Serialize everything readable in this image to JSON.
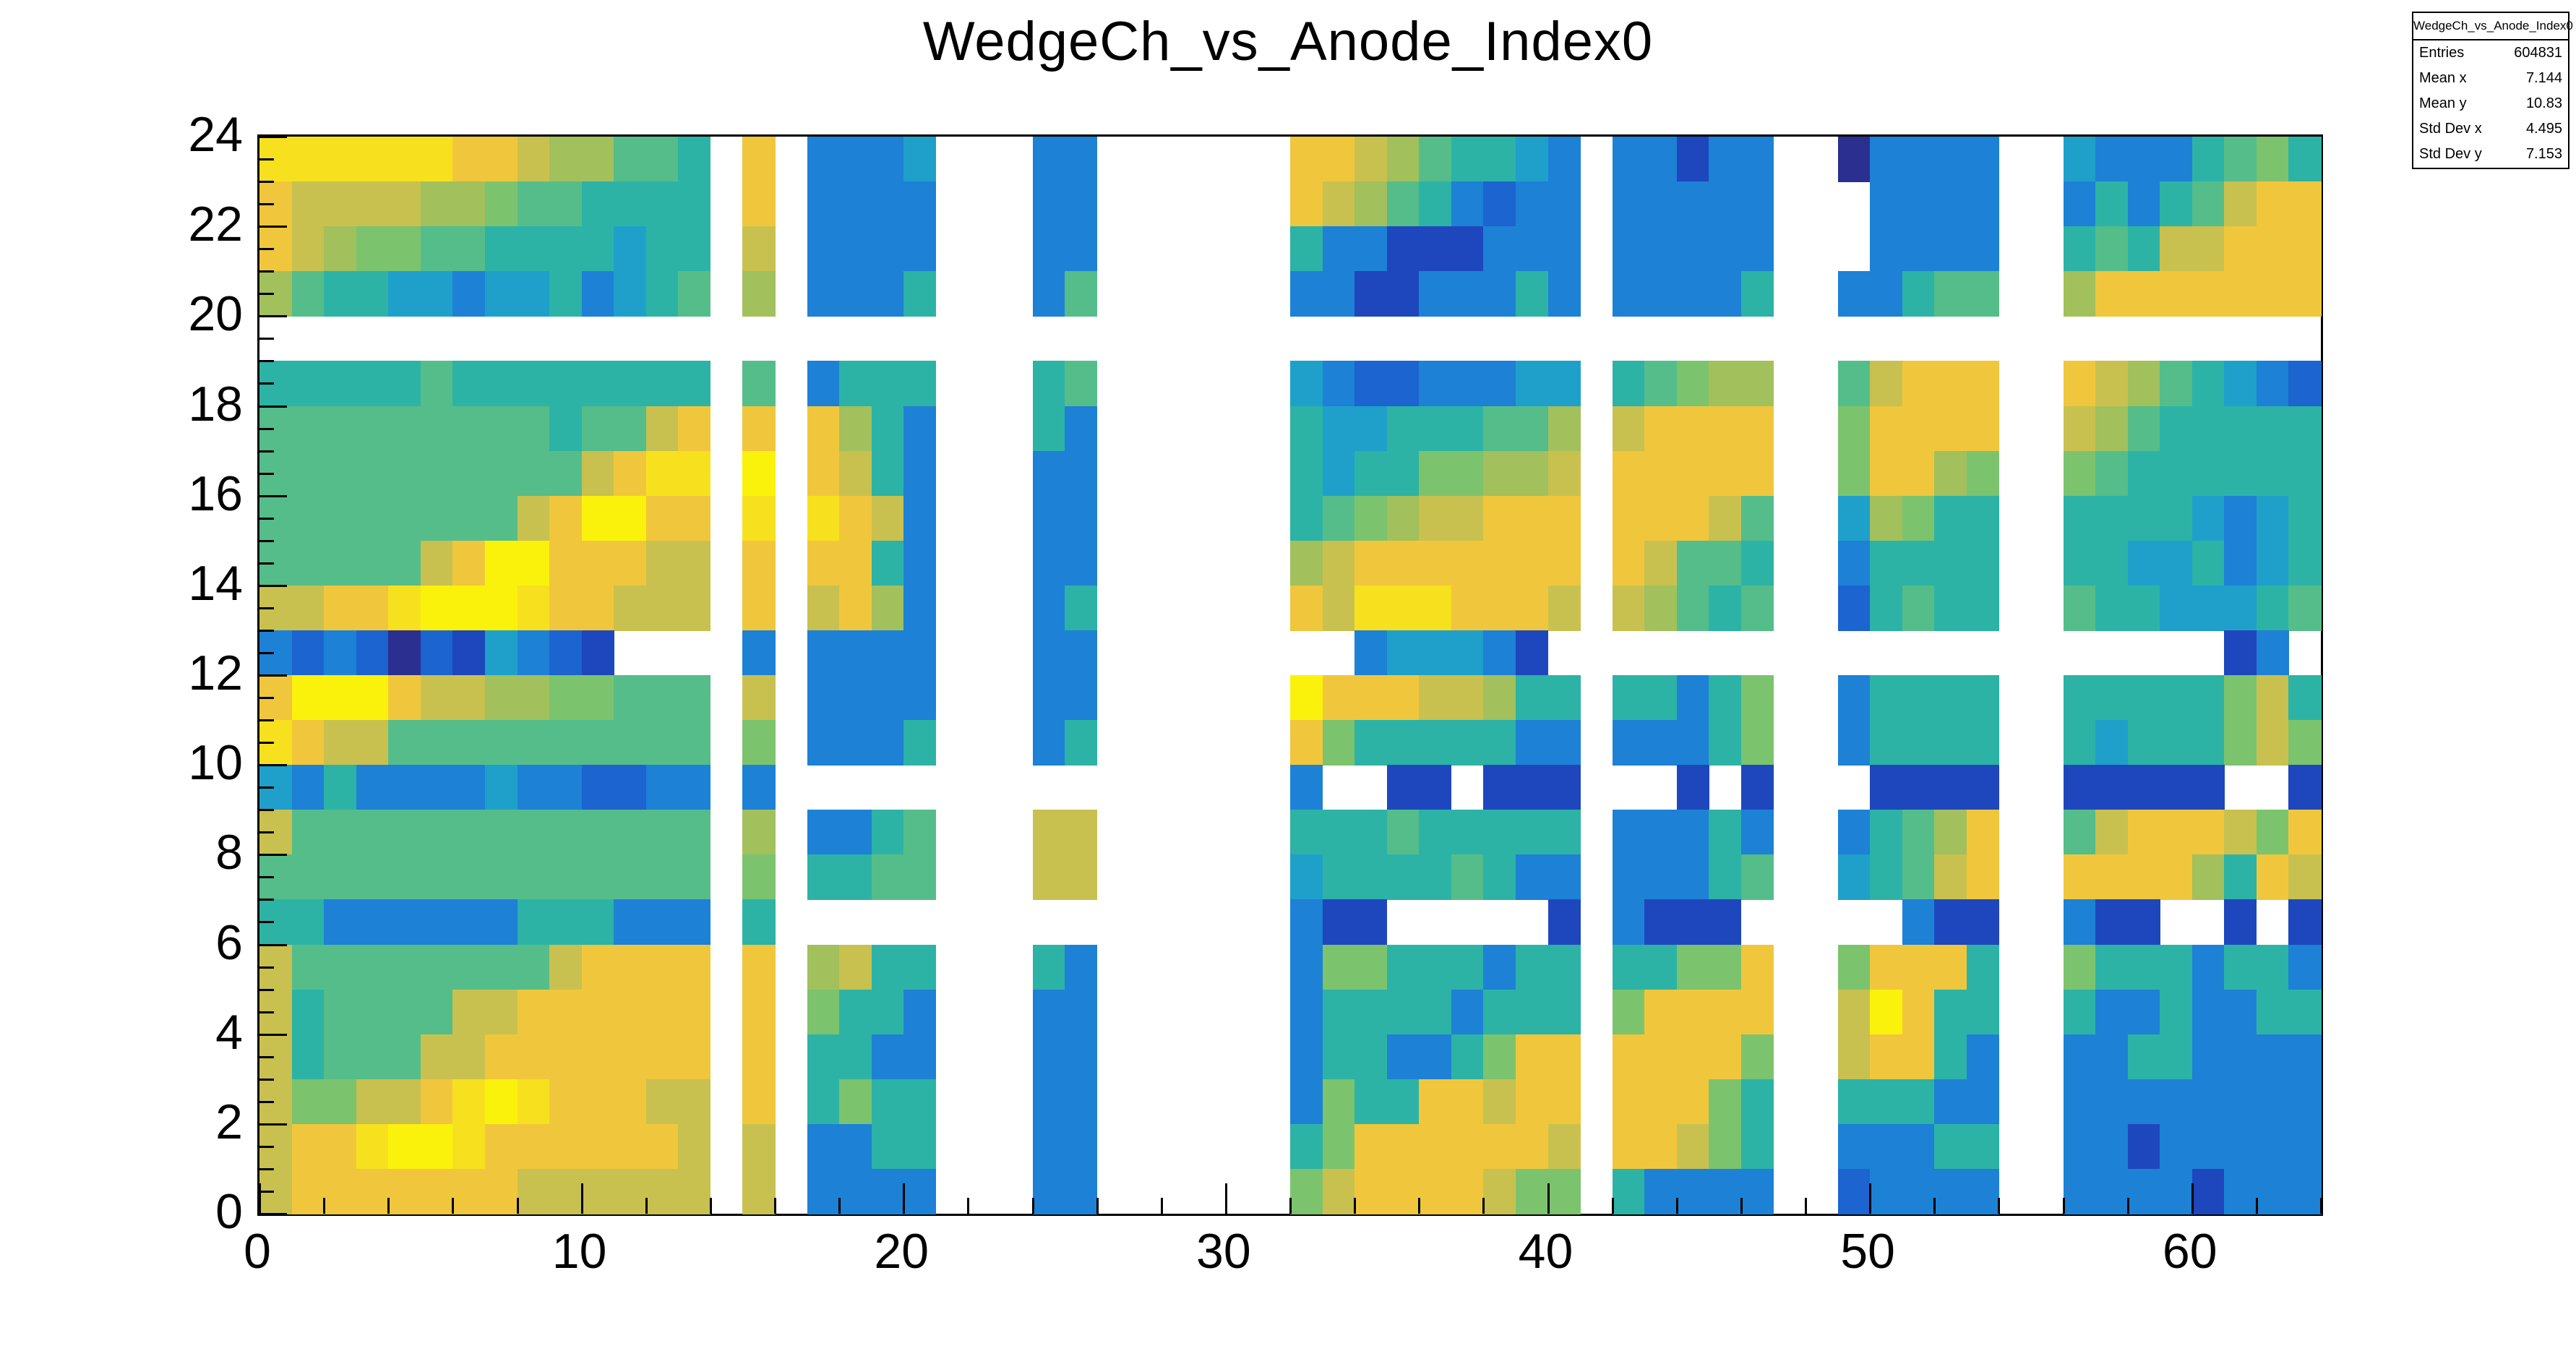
{
  "title": "WedgeCh_vs_Anode_Index0",
  "stats_box": {
    "title": "WedgeCh_vs_Anode_Index0",
    "entries": [
      {
        "label": "Entries",
        "value": "604831"
      },
      {
        "label": "Mean x",
        "value": "7.144"
      },
      {
        "label": "Mean y",
        "value": "10.83"
      },
      {
        "label": "Std Dev x",
        "value": "4.495"
      },
      {
        "label": "Std Dev y",
        "value": "7.153"
      }
    ]
  },
  "chart_data": {
    "type": "heatmap",
    "title": "WedgeCh_vs_Anode_Index0",
    "xlabel": "",
    "ylabel": "",
    "x_range": [
      0,
      64
    ],
    "y_range": [
      0,
      24
    ],
    "bins": {
      "nx": 64,
      "ny": 24
    },
    "x_tick_labels": [
      0,
      10,
      20,
      30,
      40,
      50,
      60
    ],
    "x_minor_step": 2,
    "y_tick_labels": [
      0,
      2,
      4,
      6,
      8,
      10,
      12,
      14,
      16,
      18,
      20,
      22,
      24
    ],
    "y_minor_step": 0.5,
    "grid_on": false,
    "legend": "none",
    "palette": {
      "Y": "#fbf20c",
      "y": "#f7e11f",
      "G": "#f0c73c",
      "o": "#c8c14f",
      "v": "#a2c05c",
      "g": "#7cc36e",
      "s": "#55bd8a",
      "t": "#2cb3a6",
      "c": "#1fa0ca",
      "b": "#1d81d6",
      "B": "#1c64cf",
      "N": "#1e47bd",
      "D": "#2b2f90",
      ".": null
    },
    "rows_top_to_bottom": [
      "yyyyyyGGovvsst.G.bbbc...bb......GGovsttcb.bbNbb..Dbbbb..cbbbtsgt",
      "Goooovvgsstttt.G.bbbb...bb......GovstbBbb.bbbbb...bbbb..btbtsoGG",
      "Govggssttttctt.o.bbbb...bb......tbbNNNbbb.bbbbb...bbbb..tstooGGG",
      "vsttccbcctbcts.v.bbbt...bs......bbNNbbbtb.bbbbt..bbtss..vGGGGGGG",
      "................................................................",
      "tttttstttttttt.s.bttt...ts......cbBBbbbcc.tsgvv..soGGG..GovstcbB",
      "ssssssssstssoG.G.Gvtb...tb......tcctttssv.oGGGG..gGGGG..ovsttttt",
      "ssssssssssoGyy.Y.Gotb...bb......tcttggvvo.GGGGG..gGGvg..gstttttt",
      "ssssssssoGYYGG.y.yGob...bb......tsgvooGGG.GGGos..cvgtt..ttttcbct",
      "sssssoGYYGGGoo.G.GGtb...bb......voGGGGGGG.Gosst..btttt..ttcctbct",
      "ooGGyYYYyGGooo.G.oGvb...bt......GoyyyGGGo.ovsts..Btstt..sttcccts",
      "bBbBDBNcbBN....b.bbbb...bb........bcccbN.....................Nb.",
      "GYYYGoovvggsss.o.bbbb...bb......YGGGoovtt.ttbtg..btttt..tttttgot",
      "yGoossssssssss.g.bbbt...bt......Ggtttttbb.bbbtg..btttt..tctttgog",
      "cbtbbbbcbbBBbb.b................b..NN.NNN...N.N...NNNN..NNNNN..N",
      "osssssssssssss.v.bbts...oo......tttsttttt.bbbtb..btsvG..soGGGogG",
      "ssssssssssssss.g.ttss...oo......cttttstbb.bbbts..ctsoG..GGGGvtGo",
      "ttbbbbbbtttbbb.t................bNN.....N.bNNN.....bNN..bNN..N.N",
      "ossssssssoGGGG.G.vott...tb......bggtttbtt.ttggG..gGGGt..gtttbttb",
      "otssssooGGGGGG.G.gttb...bb......bttttbttt.gGGGG..oYGtt..tbbtbbtt",
      "otsssooGGGGGGG.G.ttbb...bb......bttbbtgGG.GGGGg..oGGtb..bbttbbbb",
      "oggooGyYyGGGoo.G.tgtt...bb......bgttGGoGG.GGGgt..tttbb..bbbbbbbb",
      "oGGyYYyGGGGGGo.o.bbtt...bb......tgGGGGGGo.GGogt..bbbtt..bbNbbbbb",
      "oGGGGGGGoooooo.o.bbbb...bb......goGGGGogg.tbbbb..Bbbbb..bbbbNbbb"
    ]
  }
}
